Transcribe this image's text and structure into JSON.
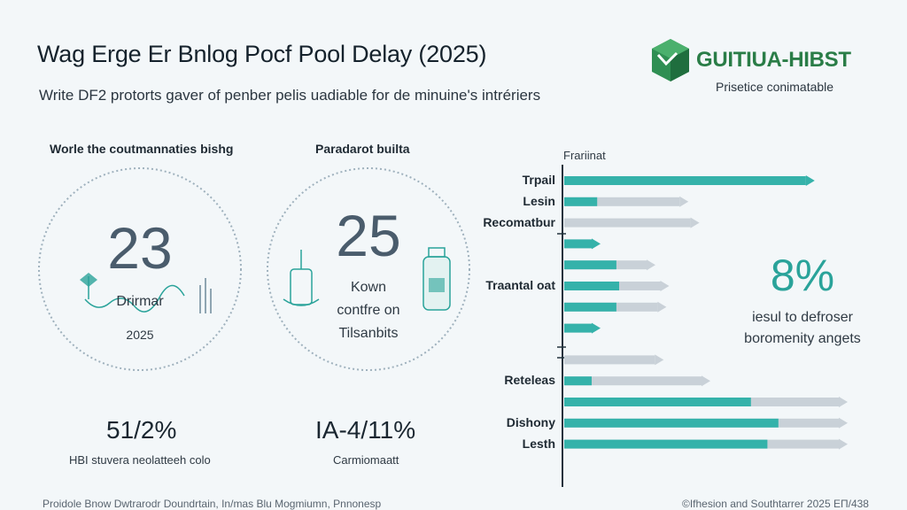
{
  "header": {
    "title": "Wag Erge Er Bnlog Pocf Pool Delay (2025)",
    "subtitle": "Write DF2 protorts gaver of penber pelis uadiable for de minuine's intrériers"
  },
  "logo": {
    "name": "GUITIUA-HIBST",
    "tagline": "Prisetice conimatable",
    "color": "#2a7d47"
  },
  "panels": [
    {
      "heading": "Worle the coutmannaties bishg",
      "number": "23",
      "line1": "Drirmar",
      "line2": "2025",
      "percent": "51/2%",
      "percent_label": "HBI stuvera neolatteeh colo"
    },
    {
      "heading": "Paradarot builta",
      "number": "25",
      "line1": "Kown",
      "line2": "contfre on",
      "line3": "Tilsanbits",
      "percent": "IA-4/11%",
      "percent_label": "Carmiomaatt"
    }
  ],
  "kpi": {
    "value": "8%",
    "line1": "iesul to defroser",
    "line2": "boromenity angets",
    "color": "#2aa39a"
  },
  "footer": {
    "left": "Proidole Bnow Dwtrarodr Doundrtain, In/mas Blu Mogmiumn, Pnnonesp",
    "right": "©Ifhesion and Southtarrer 2025 ΕΠ/438"
  },
  "chart_data": {
    "type": "bar",
    "orientation": "horizontal",
    "axis_title": "Frariinat",
    "colors": {
      "filled": "#35b2aa",
      "track": "#c9d1d8",
      "arrow": "#8b98a2"
    },
    "rows": [
      {
        "label": "Trpail",
        "filled": 0.88,
        "track": 0.88
      },
      {
        "label": "Lesin",
        "filled": 0.12,
        "track": 0.42
      },
      {
        "label": "Recomatbur",
        "filled": 0.0,
        "track": 0.46
      },
      {
        "label": "",
        "filled": 0.1,
        "track": 0.1
      },
      {
        "label": "",
        "filled": 0.19,
        "track": 0.3
      },
      {
        "label": "Traantal oat",
        "filled": 0.2,
        "track": 0.35
      },
      {
        "label": "",
        "filled": 0.19,
        "track": 0.34
      },
      {
        "label": "",
        "filled": 0.1,
        "track": 0.1
      },
      {
        "label": "",
        "filled": 0.0,
        "track": 0.33
      },
      {
        "label": "Reteleas",
        "filled": 0.1,
        "track": 0.5
      },
      {
        "label": "",
        "filled": 0.68,
        "track": 1.0
      },
      {
        "label": "Dishony",
        "filled": 0.78,
        "track": 1.0
      },
      {
        "label": "Lesth",
        "filled": 0.74,
        "track": 1.0
      }
    ]
  }
}
